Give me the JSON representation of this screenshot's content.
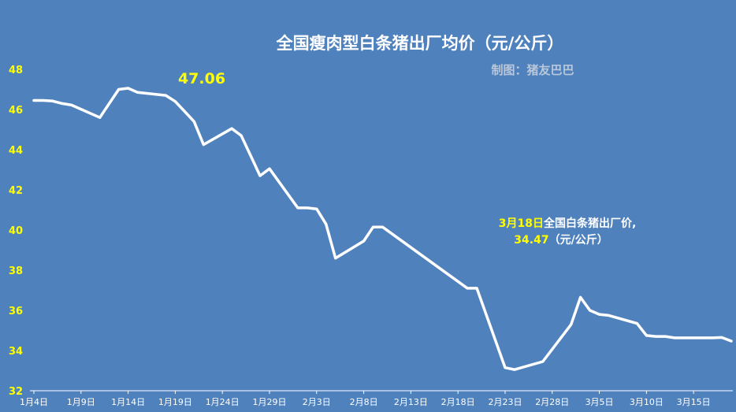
{
  "chart_data": {
    "type": "line",
    "title": "全国瘦肉型白条猪出厂均价（元/公斤）",
    "credit": "制图：猪友巴巴",
    "ylim": [
      32,
      48
    ],
    "yticks": [
      32,
      34,
      36,
      38,
      40,
      42,
      44,
      46,
      48
    ],
    "x_start": "1月4日",
    "xtick_labels": [
      "1月4日",
      "1月9日",
      "1月14日",
      "1月19日",
      "1月24日",
      "1月29日",
      "2月3日",
      "2月8日",
      "2月13日",
      "2月18日",
      "2月23日",
      "2月28日",
      "3月5日",
      "3月10日",
      "3月15日"
    ],
    "x_range": [
      0,
      74
    ],
    "points": [
      {
        "x": 0,
        "y": 46.45
      },
      {
        "x": 1,
        "y": 46.45
      },
      {
        "x": 2,
        "y": 46.42
      },
      {
        "x": 3,
        "y": 46.3
      },
      {
        "x": 4,
        "y": 46.22
      },
      {
        "x": 7,
        "y": 45.6
      },
      {
        "x": 9,
        "y": 47.0
      },
      {
        "x": 10,
        "y": 47.06
      },
      {
        "x": 11,
        "y": 46.85
      },
      {
        "x": 14,
        "y": 46.7
      },
      {
        "x": 15,
        "y": 46.4
      },
      {
        "x": 16,
        "y": 45.9
      },
      {
        "x": 17,
        "y": 45.4
      },
      {
        "x": 18,
        "y": 44.25
      },
      {
        "x": 21,
        "y": 45.05
      },
      {
        "x": 22,
        "y": 44.7
      },
      {
        "x": 23,
        "y": 43.7
      },
      {
        "x": 24,
        "y": 42.7
      },
      {
        "x": 25,
        "y": 43.05
      },
      {
        "x": 28,
        "y": 41.1
      },
      {
        "x": 29,
        "y": 41.1
      },
      {
        "x": 30,
        "y": 41.05
      },
      {
        "x": 31,
        "y": 40.3
      },
      {
        "x": 32,
        "y": 38.6
      },
      {
        "x": 35,
        "y": 39.45
      },
      {
        "x": 36,
        "y": 40.15
      },
      {
        "x": 37,
        "y": 40.15
      },
      {
        "x": 46,
        "y": 37.1
      },
      {
        "x": 47,
        "y": 37.1
      },
      {
        "x": 50,
        "y": 33.15
      },
      {
        "x": 51,
        "y": 33.05
      },
      {
        "x": 54,
        "y": 33.45
      },
      {
        "x": 57,
        "y": 35.3
      },
      {
        "x": 58,
        "y": 36.65
      },
      {
        "x": 59,
        "y": 36.0
      },
      {
        "x": 60,
        "y": 35.8
      },
      {
        "x": 61,
        "y": 35.75
      },
      {
        "x": 64,
        "y": 35.35
      },
      {
        "x": 65,
        "y": 34.75
      },
      {
        "x": 66,
        "y": 34.7
      },
      {
        "x": 67,
        "y": 34.7
      },
      {
        "x": 68,
        "y": 34.63
      },
      {
        "x": 71,
        "y": 34.63
      },
      {
        "x": 72,
        "y": 34.63
      },
      {
        "x": 73,
        "y": 34.65
      },
      {
        "x": 74,
        "y": 34.47
      }
    ],
    "peak": {
      "x": 10,
      "y": 47.06,
      "label": "47.06"
    },
    "annotation": {
      "line1_yellow": "3月18日",
      "line1_white": "全国白条猪出厂价,",
      "line2_yellow": "34.47",
      "line2_white": "（元/公斤）"
    },
    "colors": {
      "background": "#4f81bd",
      "line": "#ffffff",
      "highlight": "#ffff00"
    }
  }
}
